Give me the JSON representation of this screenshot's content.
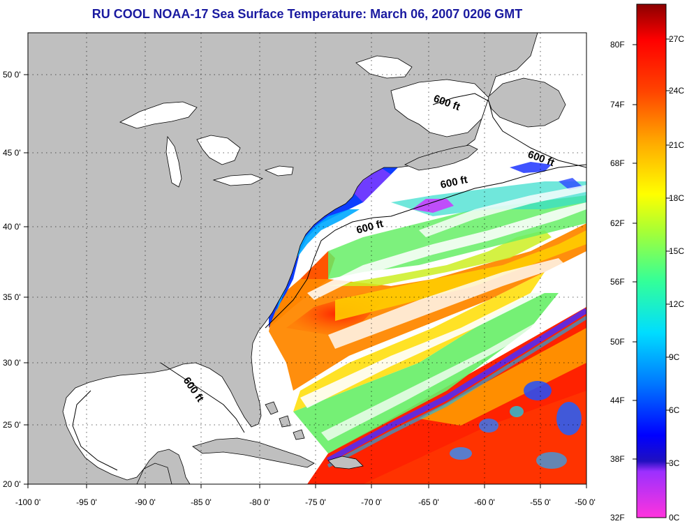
{
  "title": "RU COOL  NOAA-17  Sea Surface Temperature:  March 06, 2007 0206 GMT",
  "map": {
    "lon_range": [
      -100,
      -50
    ],
    "lat_range": [
      20,
      52.5
    ],
    "lon_ticks": [
      "-100 0'",
      "-95 0'",
      "-90 0'",
      "-85 0'",
      "-80 0'",
      "-75 0'",
      "-70 0'",
      "-65 0'",
      "-60 0'",
      "-55 0'",
      "-50 0'"
    ],
    "lat_ticks": [
      "20 0'",
      "25 0'",
      "30 0'",
      "35 0'",
      "40 0'",
      "45 0'",
      "50 0'"
    ],
    "contour_labels": [
      "600 ft",
      "600 ft",
      "600 ft",
      "600 ft",
      "600 ft"
    ],
    "colors": {
      "land": "#bfbfbf",
      "no_data": "#ffffff",
      "contour": "#000000"
    }
  },
  "colorbar": {
    "fahrenheit_labels": [
      "80F",
      "74F",
      "68F",
      "62F",
      "56F",
      "50F",
      "44F",
      "38F",
      "32F"
    ],
    "celsius_labels": [
      "27C",
      "24C",
      "21C",
      "18C",
      "15C",
      "12C",
      "9C",
      "6C",
      "3C",
      "0C"
    ],
    "range_c": [
      0,
      28.5
    ],
    "scale": [
      "#ff33dd",
      "#9b30ff",
      "#0000ff",
      "#0077ff",
      "#00ddff",
      "#33ff99",
      "#aaff33",
      "#ffff00",
      "#ffaa00",
      "#ff4400",
      "#ff0000",
      "#8b0000"
    ]
  }
}
